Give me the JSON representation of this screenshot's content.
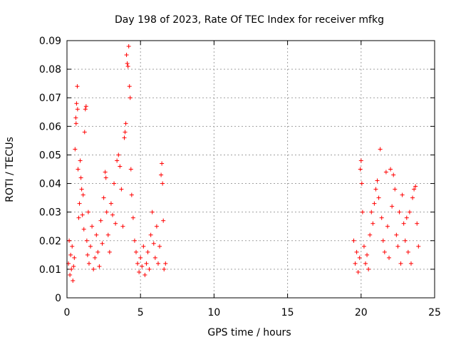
{
  "chart_data": {
    "type": "scatter",
    "title": "Day 198 of 2023, Rate Of TEC Index for receiver mfkg",
    "xlabel": "GPS time / hours",
    "ylabel": "ROTI / TECUs",
    "xlim": [
      0,
      25
    ],
    "ylim": [
      0,
      0.09
    ],
    "x_ticks": [
      0,
      5,
      10,
      15,
      20,
      25
    ],
    "x_tick_labels": [
      "0",
      "5",
      "10",
      "15",
      "20",
      "25"
    ],
    "y_ticks": [
      0,
      0.01,
      0.02,
      0.03,
      0.04,
      0.05,
      0.06,
      0.07,
      0.08,
      0.09
    ],
    "y_tick_labels": [
      "0",
      "0.01",
      "0.02",
      "0.03",
      "0.04",
      "0.05",
      "0.06",
      "0.07",
      "0.08",
      "0.09"
    ],
    "grid": true,
    "marker": "+",
    "color": "#ff0000",
    "series": [
      {
        "points": [
          [
            0.1,
            0.012
          ],
          [
            0.15,
            0.02
          ],
          [
            0.2,
            0.008
          ],
          [
            0.25,
            0.015
          ],
          [
            0.3,
            0.01
          ],
          [
            0.35,
            0.018
          ],
          [
            0.4,
            0.006
          ],
          [
            0.45,
            0.011
          ],
          [
            0.5,
            0.014
          ],
          [
            0.55,
            0.052
          ],
          [
            0.6,
            0.063
          ],
          [
            0.62,
            0.061
          ],
          [
            0.65,
            0.068
          ],
          [
            0.7,
            0.074
          ],
          [
            0.72,
            0.066
          ],
          [
            0.75,
            0.045
          ],
          [
            0.8,
            0.028
          ],
          [
            0.85,
            0.033
          ],
          [
            0.9,
            0.048
          ],
          [
            0.95,
            0.042
          ],
          [
            1.0,
            0.038
          ],
          [
            1.05,
            0.029
          ],
          [
            1.1,
            0.036
          ],
          [
            1.15,
            0.024
          ],
          [
            1.2,
            0.058
          ],
          [
            1.25,
            0.066
          ],
          [
            1.3,
            0.067
          ],
          [
            1.35,
            0.02
          ],
          [
            1.4,
            0.015
          ],
          [
            1.45,
            0.03
          ],
          [
            1.5,
            0.012
          ],
          [
            1.6,
            0.018
          ],
          [
            1.7,
            0.025
          ],
          [
            1.8,
            0.01
          ],
          [
            1.9,
            0.014
          ],
          [
            2.0,
            0.022
          ],
          [
            2.1,
            0.016
          ],
          [
            2.2,
            0.011
          ],
          [
            2.3,
            0.027
          ],
          [
            2.4,
            0.019
          ],
          [
            2.5,
            0.035
          ],
          [
            2.6,
            0.044
          ],
          [
            2.65,
            0.042
          ],
          [
            2.7,
            0.03
          ],
          [
            2.8,
            0.022
          ],
          [
            2.9,
            0.016
          ],
          [
            3.0,
            0.033
          ],
          [
            3.1,
            0.029
          ],
          [
            3.2,
            0.04
          ],
          [
            3.3,
            0.026
          ],
          [
            3.4,
            0.048
          ],
          [
            3.5,
            0.05
          ],
          [
            3.6,
            0.046
          ],
          [
            3.7,
            0.038
          ],
          [
            3.8,
            0.025
          ],
          [
            3.9,
            0.056
          ],
          [
            3.95,
            0.058
          ],
          [
            4.0,
            0.061
          ],
          [
            4.05,
            0.085
          ],
          [
            4.1,
            0.082
          ],
          [
            4.15,
            0.081
          ],
          [
            4.2,
            0.088
          ],
          [
            4.25,
            0.074
          ],
          [
            4.3,
            0.07
          ],
          [
            4.35,
            0.045
          ],
          [
            4.4,
            0.036
          ],
          [
            4.5,
            0.028
          ],
          [
            4.6,
            0.02
          ],
          [
            4.7,
            0.016
          ],
          [
            4.8,
            0.012
          ],
          [
            4.9,
            0.009
          ],
          [
            5.0,
            0.014
          ],
          [
            5.1,
            0.011
          ],
          [
            5.2,
            0.018
          ],
          [
            5.3,
            0.008
          ],
          [
            5.4,
            0.012
          ],
          [
            5.5,
            0.016
          ],
          [
            5.6,
            0.01
          ],
          [
            5.7,
            0.022
          ],
          [
            5.8,
            0.03
          ],
          [
            5.9,
            0.019
          ],
          [
            6.0,
            0.014
          ],
          [
            6.1,
            0.025
          ],
          [
            6.2,
            0.012
          ],
          [
            6.3,
            0.018
          ],
          [
            6.4,
            0.043
          ],
          [
            6.45,
            0.047
          ],
          [
            6.5,
            0.04
          ],
          [
            6.55,
            0.027
          ],
          [
            6.6,
            0.01
          ],
          [
            6.7,
            0.012
          ],
          [
            19.5,
            0.02
          ],
          [
            19.6,
            0.012
          ],
          [
            19.7,
            0.016
          ],
          [
            19.8,
            0.009
          ],
          [
            19.9,
            0.014
          ],
          [
            19.95,
            0.045
          ],
          [
            20.0,
            0.048
          ],
          [
            20.05,
            0.04
          ],
          [
            20.1,
            0.03
          ],
          [
            20.2,
            0.018
          ],
          [
            20.3,
            0.012
          ],
          [
            20.4,
            0.015
          ],
          [
            20.5,
            0.01
          ],
          [
            20.6,
            0.022
          ],
          [
            20.7,
            0.03
          ],
          [
            20.8,
            0.026
          ],
          [
            20.9,
            0.033
          ],
          [
            21.0,
            0.038
          ],
          [
            21.1,
            0.041
          ],
          [
            21.2,
            0.035
          ],
          [
            21.3,
            0.052
          ],
          [
            21.4,
            0.028
          ],
          [
            21.5,
            0.02
          ],
          [
            21.6,
            0.016
          ],
          [
            21.7,
            0.044
          ],
          [
            21.8,
            0.025
          ],
          [
            21.9,
            0.014
          ],
          [
            22.0,
            0.045
          ],
          [
            22.1,
            0.032
          ],
          [
            22.2,
            0.043
          ],
          [
            22.3,
            0.038
          ],
          [
            22.4,
            0.022
          ],
          [
            22.5,
            0.018
          ],
          [
            22.6,
            0.03
          ],
          [
            22.7,
            0.012
          ],
          [
            22.8,
            0.036
          ],
          [
            22.9,
            0.026
          ],
          [
            23.0,
            0.02
          ],
          [
            23.1,
            0.028
          ],
          [
            23.2,
            0.016
          ],
          [
            23.3,
            0.03
          ],
          [
            23.4,
            0.012
          ],
          [
            23.5,
            0.035
          ],
          [
            23.6,
            0.038
          ],
          [
            23.7,
            0.039
          ],
          [
            23.8,
            0.026
          ],
          [
            23.9,
            0.018
          ]
        ]
      }
    ]
  }
}
